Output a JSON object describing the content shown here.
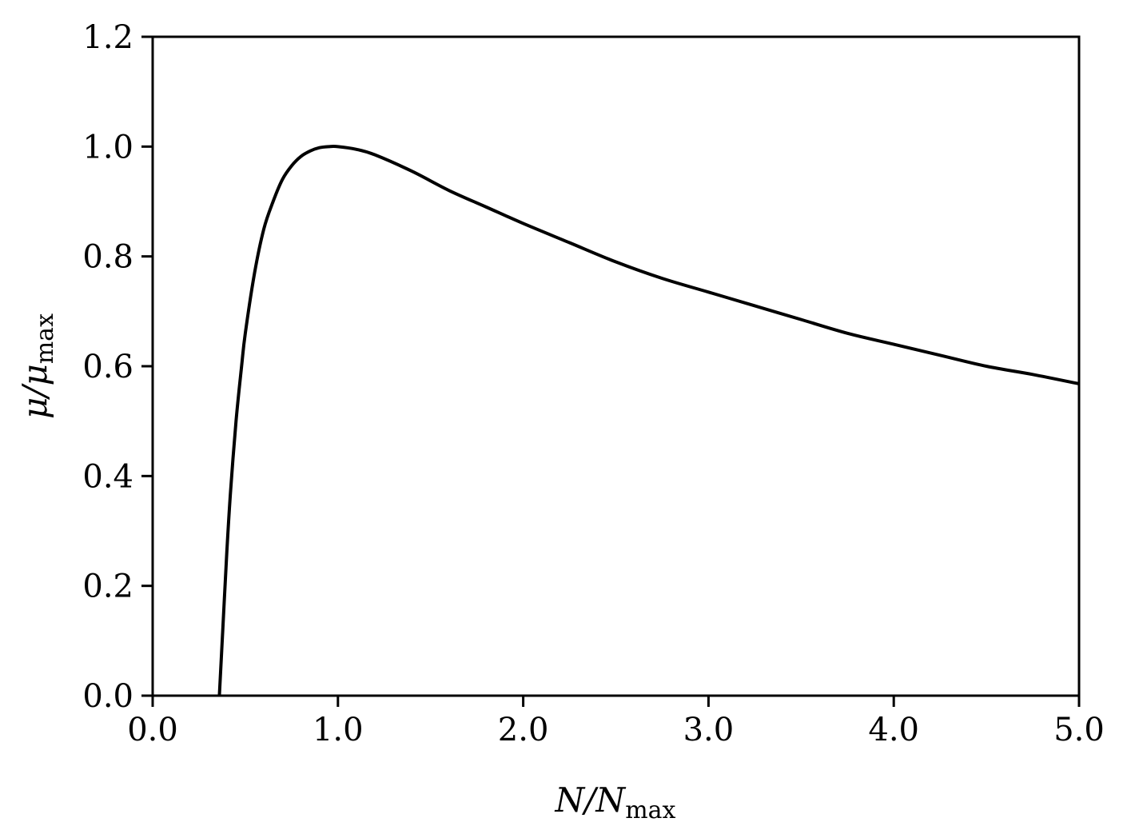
{
  "chart_data": {
    "type": "line",
    "title": "",
    "xlabel": {
      "main": "N/N",
      "sub": "max"
    },
    "ylabel": {
      "main": "μ/μ",
      "sub": "max"
    },
    "xlim": [
      0.0,
      5.0
    ],
    "ylim": [
      0.0,
      1.2
    ],
    "xticks": [
      0.0,
      1.0,
      2.0,
      3.0,
      4.0,
      5.0
    ],
    "xtick_labels": [
      "0.0",
      "1.0",
      "2.0",
      "3.0",
      "4.0",
      "5.0"
    ],
    "yticks": [
      0.0,
      0.2,
      0.4,
      0.6,
      0.8,
      1.0,
      1.2
    ],
    "ytick_labels": [
      "0.0",
      "0.2",
      "0.4",
      "0.6",
      "0.8",
      "1.0",
      "1.2"
    ],
    "grid": false,
    "legend": "none",
    "line_color": "#000000",
    "series": [
      {
        "x": [
          0.36,
          0.38,
          0.4,
          0.42,
          0.45,
          0.48,
          0.5,
          0.55,
          0.6,
          0.65,
          0.7,
          0.75,
          0.8,
          0.85,
          0.9,
          0.95,
          1.0,
          1.1,
          1.2,
          1.4,
          1.6,
          1.8,
          2.0,
          2.25,
          2.5,
          2.75,
          3.0,
          3.25,
          3.5,
          3.75,
          4.0,
          4.25,
          4.5,
          4.75,
          5.0
        ],
        "y": [
          0.0,
          0.13,
          0.26,
          0.37,
          0.5,
          0.6,
          0.66,
          0.77,
          0.85,
          0.9,
          0.94,
          0.965,
          0.982,
          0.992,
          0.998,
          1.0,
          1.0,
          0.995,
          0.985,
          0.955,
          0.92,
          0.89,
          0.86,
          0.825,
          0.79,
          0.76,
          0.735,
          0.71,
          0.685,
          0.66,
          0.64,
          0.62,
          0.6,
          0.585,
          0.568
        ]
      }
    ]
  }
}
